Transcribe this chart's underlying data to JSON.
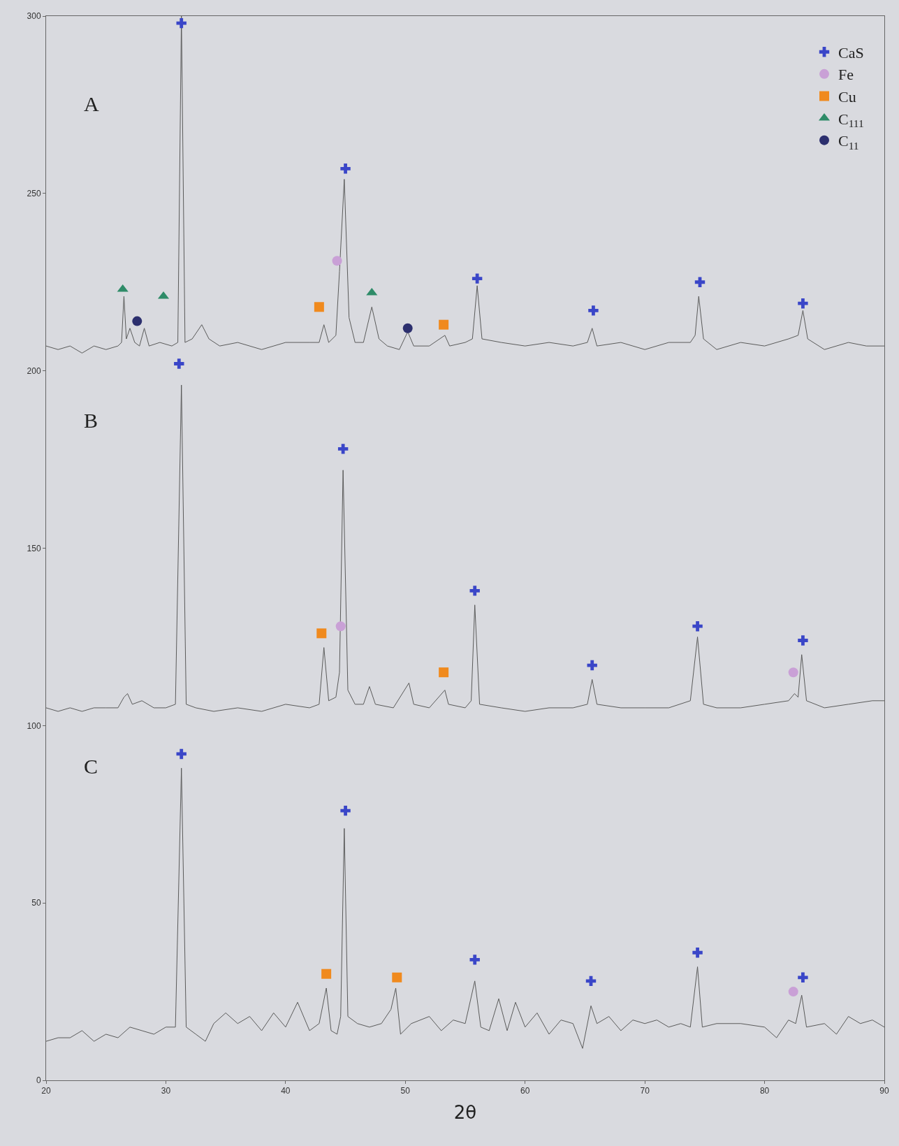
{
  "chart_data": {
    "type": "line",
    "xlabel": "2θ",
    "xlim": [
      20,
      90
    ],
    "ylim": [
      0,
      300
    ],
    "xticks": [
      20,
      30,
      40,
      50,
      60,
      70,
      80,
      90
    ],
    "yticks": [
      0,
      50,
      100,
      150,
      200,
      250,
      300
    ],
    "grid": false,
    "legend": "top right",
    "annotations": [
      "A",
      "B",
      "C"
    ],
    "series": [
      {
        "color": "#5a5a5a",
        "marker": "none",
        "x": [
          20,
          21,
          22,
          23,
          24,
          25,
          26,
          26.3,
          26.5,
          26.7,
          27,
          27.4,
          27.8,
          28.2,
          28.6,
          29.5,
          30.5,
          31,
          31.3,
          31.6,
          32.2,
          33,
          33.6,
          34.5,
          36,
          38,
          40,
          42,
          42.8,
          43.2,
          43.6,
          44.2,
          44.5,
          44.9,
          45.3,
          45.8,
          46.5,
          47.2,
          47.8,
          48.5,
          49.5,
          50.2,
          50.7,
          52,
          53.3,
          53.7,
          55,
          55.6,
          56,
          56.4,
          58,
          60,
          62,
          64,
          65.2,
          65.6,
          66,
          68,
          70,
          72,
          73.8,
          74.2,
          74.5,
          74.9,
          76,
          78,
          80,
          82,
          82.8,
          83.2,
          83.6,
          85,
          87,
          88.5,
          90
        ],
        "values": [
          207,
          206,
          207,
          205,
          207,
          206,
          207,
          208,
          221,
          209,
          212,
          208,
          207,
          212,
          207,
          208,
          207,
          208,
          300,
          208,
          209,
          213,
          209,
          207,
          208,
          206,
          208,
          208,
          208,
          213,
          208,
          210,
          228,
          254,
          215,
          208,
          208,
          218,
          209,
          207,
          206,
          211,
          207,
          207,
          210,
          207,
          208,
          209,
          224,
          209,
          208,
          207,
          208,
          207,
          208,
          212,
          207,
          208,
          206,
          208,
          208,
          210,
          221,
          209,
          206,
          208,
          207,
          209,
          210,
          217,
          209,
          206,
          208,
          207,
          207
        ]
      },
      {
        "color": "#5a5a5a",
        "marker": "none",
        "x": [
          20,
          21,
          22,
          23,
          24,
          25,
          26,
          26.5,
          26.8,
          27.2,
          28,
          29,
          30,
          30.8,
          31.3,
          31.7,
          32.5,
          34,
          36,
          38,
          40,
          42,
          42.8,
          43.2,
          43.6,
          44.2,
          44.5,
          44.8,
          45.2,
          45.8,
          46.5,
          47,
          47.5,
          49,
          50.3,
          50.7,
          52,
          53.3,
          53.6,
          55,
          55.5,
          55.8,
          56.2,
          58,
          60,
          62,
          64,
          65.2,
          65.6,
          66,
          68,
          70,
          72,
          73.8,
          74.4,
          74.9,
          76,
          78,
          80,
          82,
          82.5,
          82.8,
          83.1,
          83.5,
          85,
          87,
          89,
          90
        ],
        "values": [
          105,
          104,
          105,
          104,
          105,
          105,
          105,
          108,
          109,
          106,
          107,
          105,
          105,
          106,
          196,
          106,
          105,
          104,
          105,
          104,
          106,
          105,
          106,
          122,
          107,
          108,
          115,
          172,
          110,
          106,
          106,
          111,
          106,
          105,
          112,
          106,
          105,
          110,
          106,
          105,
          107,
          134,
          106,
          105,
          104,
          105,
          105,
          106,
          113,
          106,
          105,
          105,
          105,
          107,
          125,
          106,
          105,
          105,
          106,
          107,
          109,
          108,
          120,
          107,
          105,
          106,
          107,
          107
        ]
      },
      {
        "color": "#5a5a5a",
        "marker": "none",
        "x": [
          20,
          21,
          22,
          23,
          24,
          25,
          26,
          27,
          28,
          29,
          30,
          30.8,
          31.3,
          31.7,
          32.5,
          33.3,
          34,
          35,
          36,
          37,
          38,
          39,
          40,
          41,
          42,
          42.8,
          43.4,
          43.8,
          44.3,
          44.6,
          44.9,
          45.2,
          46,
          47,
          48,
          48.8,
          49.2,
          49.6,
          50.5,
          52,
          53,
          54,
          55,
          55.8,
          56.3,
          57,
          57.8,
          58.5,
          59.2,
          60,
          61,
          62,
          63,
          64,
          64.8,
          65.5,
          66,
          67,
          68,
          69,
          70,
          71,
          72,
          73,
          73.8,
          74.4,
          74.8,
          76,
          78,
          80,
          81,
          82,
          82.6,
          83.1,
          83.5,
          85,
          86,
          87,
          88,
          89,
          90
        ],
        "values": [
          11,
          12,
          12,
          14,
          11,
          13,
          12,
          15,
          14,
          13,
          15,
          15,
          88,
          15,
          13,
          11,
          16,
          19,
          16,
          18,
          14,
          19,
          15,
          22,
          14,
          16,
          26,
          14,
          13,
          18,
          71,
          18,
          16,
          15,
          16,
          20,
          26,
          13,
          16,
          18,
          14,
          17,
          16,
          28,
          15,
          14,
          23,
          14,
          22,
          15,
          19,
          13,
          17,
          16,
          9,
          21,
          16,
          18,
          14,
          17,
          16,
          17,
          15,
          16,
          15,
          32,
          15,
          16,
          16,
          15,
          12,
          17,
          16,
          24,
          15,
          16,
          13,
          18,
          16,
          17,
          15
        ]
      },
      {
        "name": "CaS",
        "type": "scatter",
        "color": "#3a46c8",
        "marker": "cross",
        "x": [
          31.3,
          45,
          56,
          65.7,
          74.6,
          83.2,
          31.1,
          44.8,
          55.8,
          65.6,
          74.4,
          83.2,
          31.3,
          45,
          55.8,
          65.5,
          74.4,
          83.2
        ],
        "values": [
          298,
          257,
          226,
          217,
          225,
          219,
          202,
          178,
          138,
          117,
          128,
          124,
          92,
          76,
          34,
          28,
          36,
          29
        ]
      },
      {
        "name": "Fe",
        "type": "scatter",
        "color": "#c9a0d6",
        "marker": "circle",
        "x": [
          44.3,
          44.6,
          82.4,
          82.4
        ],
        "values": [
          231,
          128,
          115,
          25
        ]
      },
      {
        "name": "Cu",
        "type": "scatter",
        "color": "#f08a1e",
        "marker": "square",
        "x": [
          42.8,
          53.2,
          43,
          53.2,
          43.4,
          49.3
        ],
        "values": [
          218,
          213,
          126,
          115,
          30,
          29
        ]
      },
      {
        "name": "C$_{111}$",
        "type": "scatter",
        "color": "#2e8b68",
        "marker": "triangle",
        "x": [
          26.4,
          29.8,
          47.2
        ],
        "values": [
          223,
          221,
          222
        ]
      },
      {
        "name": "C$_{11}$",
        "type": "scatter",
        "color": "#2c2f6e",
        "marker": "circle",
        "x": [
          27.6,
          50.2
        ],
        "values": [
          214,
          212
        ]
      }
    ]
  }
}
